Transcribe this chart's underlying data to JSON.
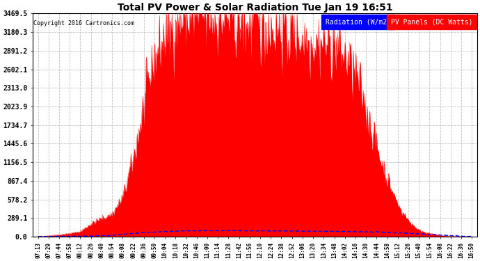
{
  "title": "Total PV Power & Solar Radiation Tue Jan 19 16:51",
  "copyright": "Copyright 2016 Cartronics.com",
  "legend_radiation": "Radiation (W/m2)",
  "legend_pv": "PV Panels (DC Watts)",
  "yticks": [
    0.0,
    289.1,
    578.2,
    867.4,
    1156.5,
    1445.6,
    1734.7,
    2023.9,
    2313.0,
    2602.1,
    2891.2,
    3180.3,
    3469.5
  ],
  "ytick_labels": [
    "0.0",
    "289.1",
    "578.2",
    "867.4",
    "1156.5",
    "1445.6",
    "1734.7",
    "2023.9",
    "2313.0",
    "2602.1",
    "2891.2",
    "3180.3",
    "3469.5"
  ],
  "ymax": 3469.5,
  "bg_color": "#ffffff",
  "plot_bg_color": "#ffffff",
  "grid_color": "#c0c0c0",
  "pv_color": "#ff0000",
  "radiation_color": "#0000ff",
  "xtick_labels": [
    "07:13",
    "07:29",
    "07:44",
    "07:58",
    "08:12",
    "08:26",
    "08:40",
    "08:54",
    "09:08",
    "09:22",
    "09:36",
    "09:50",
    "10:04",
    "10:18",
    "10:32",
    "10:46",
    "11:00",
    "11:14",
    "11:28",
    "11:42",
    "11:56",
    "12:10",
    "12:24",
    "12:38",
    "12:52",
    "13:06",
    "13:20",
    "13:34",
    "13:48",
    "14:02",
    "14:16",
    "14:30",
    "14:44",
    "14:58",
    "15:12",
    "15:26",
    "15:40",
    "15:54",
    "16:08",
    "16:22",
    "16:36",
    "16:50"
  ],
  "pv_base_keypoints_x": [
    0,
    1,
    2,
    3,
    4,
    5,
    6,
    7,
    8,
    9,
    10,
    11,
    12,
    13,
    14,
    15,
    16,
    17,
    18,
    19,
    20,
    21,
    22,
    23,
    24,
    25,
    26,
    27,
    28,
    29,
    30,
    31,
    32,
    33,
    34,
    35,
    36,
    37,
    38,
    39,
    40,
    41
  ],
  "pv_base_keypoints_y": [
    5,
    15,
    30,
    50,
    80,
    200,
    280,
    350,
    600,
    1200,
    2000,
    2800,
    3100,
    3300,
    3350,
    3380,
    3400,
    3380,
    3350,
    3320,
    3300,
    3280,
    3250,
    3200,
    3150,
    3100,
    3050,
    3000,
    2950,
    2800,
    2500,
    2000,
    1400,
    900,
    500,
    250,
    100,
    50,
    20,
    10,
    5,
    2
  ],
  "rad_base_keypoints_x": [
    0,
    1,
    2,
    3,
    4,
    5,
    6,
    7,
    8,
    9,
    10,
    12,
    14,
    16,
    18,
    20,
    22,
    24,
    26,
    28,
    30,
    32,
    34,
    36,
    38,
    39,
    40,
    41
  ],
  "rad_base_keypoints_y": [
    2,
    3,
    4,
    5,
    8,
    10,
    15,
    20,
    35,
    50,
    65,
    80,
    90,
    95,
    95,
    92,
    90,
    88,
    85,
    82,
    78,
    72,
    60,
    45,
    25,
    15,
    8,
    3
  ]
}
